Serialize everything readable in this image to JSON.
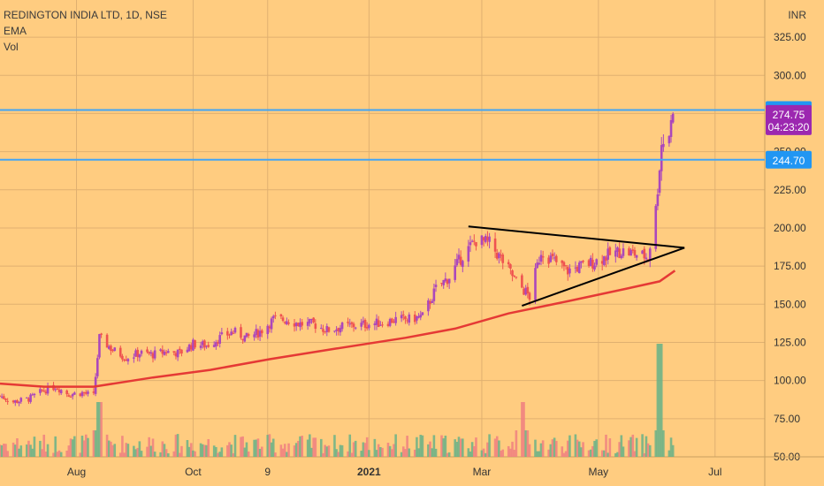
{
  "header": {
    "symbol_line": "REDINGTON INDIA LTD, 1D, NSE",
    "indicator_1": "EMA",
    "indicator_2": "Vol"
  },
  "price_axis": {
    "unit": "INR"
  },
  "price_tags": {
    "last_price": "274.75",
    "countdown": "04:23:20",
    "line_upper": "277.30",
    "line_lower": "244.70"
  },
  "colors": {
    "background": "#ffcc80",
    "candle_up": "#ab47bc",
    "candle_down": "#ef5350",
    "ema": "#e53935",
    "hline": "#42a5f5",
    "tag_blue": "#2196f3",
    "tag_purple": "#9c27b0",
    "volume_up": "#6ab187",
    "volume_down": "#f08080",
    "trendline": "#000000"
  },
  "chart_data": {
    "type": "candlestick",
    "title": "REDINGTON INDIA LTD, 1D, NSE",
    "y_unit": "INR",
    "ylim": [
      50,
      332
    ],
    "x_range": [
      "2020-06-22",
      "2021-07-27"
    ],
    "y_ticks": [
      "50.00",
      "75.00",
      "100.00",
      "125.00",
      "150.00",
      "175.00",
      "200.00",
      "225.00",
      "250.00",
      "275.00",
      "300.00",
      "325.00"
    ],
    "x_ticks": [
      {
        "label": "Aug",
        "date": "2020-08-01"
      },
      {
        "label": "Oct",
        "date": "2020-10-01"
      },
      {
        "label": "9",
        "date": "2020-11-09"
      },
      {
        "label": "2021",
        "date": "2021-01-01"
      },
      {
        "label": "Mar",
        "date": "2021-03-01"
      },
      {
        "label": "May",
        "date": "2021-05-01"
      },
      {
        "label": "Jul",
        "date": "2021-07-01"
      }
    ],
    "price_trend": [
      [
        "2020-06-22",
        90
      ],
      [
        "2020-06-29",
        86
      ],
      [
        "2020-07-07",
        88
      ],
      [
        "2020-07-14",
        93
      ],
      [
        "2020-07-21",
        96
      ],
      [
        "2020-07-28",
        91
      ],
      [
        "2020-08-04",
        92
      ],
      [
        "2020-08-10",
        90
      ],
      [
        "2020-08-13",
        128
      ],
      [
        "2020-08-20",
        120
      ],
      [
        "2020-08-27",
        115
      ],
      [
        "2020-09-03",
        118
      ],
      [
        "2020-09-10",
        117
      ],
      [
        "2020-09-17",
        119
      ],
      [
        "2020-09-24",
        118
      ],
      [
        "2020-10-01",
        124
      ],
      [
        "2020-10-08",
        123
      ],
      [
        "2020-10-15",
        128
      ],
      [
        "2020-10-22",
        132
      ],
      [
        "2020-10-29",
        128
      ],
      [
        "2020-11-05",
        132
      ],
      [
        "2020-11-12",
        140
      ],
      [
        "2020-11-19",
        140
      ],
      [
        "2020-11-26",
        137
      ],
      [
        "2020-12-03",
        137
      ],
      [
        "2020-12-10",
        133
      ],
      [
        "2020-12-17",
        135
      ],
      [
        "2020-12-24",
        136
      ],
      [
        "2021-01-01",
        137
      ],
      [
        "2021-01-08",
        138
      ],
      [
        "2021-01-15",
        140
      ],
      [
        "2021-01-22",
        140
      ],
      [
        "2021-01-29",
        142
      ],
      [
        "2021-02-05",
        160
      ],
      [
        "2021-02-12",
        168
      ],
      [
        "2021-02-19",
        182
      ],
      [
        "2021-02-26",
        192
      ],
      [
        "2021-03-05",
        190
      ],
      [
        "2021-03-12",
        178
      ],
      [
        "2021-03-19",
        165
      ],
      [
        "2021-03-26",
        155
      ],
      [
        "2021-04-01",
        185
      ],
      [
        "2021-04-08",
        178
      ],
      [
        "2021-04-15",
        172
      ],
      [
        "2021-04-22",
        175
      ],
      [
        "2021-04-29",
        178
      ],
      [
        "2021-05-06",
        182
      ],
      [
        "2021-05-13",
        185
      ],
      [
        "2021-05-20",
        183
      ],
      [
        "2021-05-27",
        181
      ],
      [
        "2021-05-31",
        212
      ],
      [
        "2021-06-03",
        255
      ],
      [
        "2021-06-07",
        262
      ],
      [
        "2021-06-09",
        274.75
      ]
    ],
    "ema": [
      [
        "2020-06-22",
        98
      ],
      [
        "2020-07-15",
        96
      ],
      [
        "2020-08-10",
        96
      ],
      [
        "2020-09-10",
        102
      ],
      [
        "2020-10-10",
        107
      ],
      [
        "2020-11-10",
        114
      ],
      [
        "2020-12-15",
        121
      ],
      [
        "2021-01-20",
        128
      ],
      [
        "2021-02-15",
        134
      ],
      [
        "2021-03-15",
        144
      ],
      [
        "2021-04-15",
        152
      ],
      [
        "2021-05-15",
        160
      ],
      [
        "2021-06-02",
        165
      ],
      [
        "2021-06-10",
        172
      ]
    ],
    "volume_spikes": [
      [
        "2020-08-13",
        "high"
      ],
      [
        "2021-03-22",
        "high"
      ],
      [
        "2021-06-02",
        "very high"
      ]
    ],
    "horizontal_levels": [
      277.3,
      244.7
    ],
    "last_price": 274.75,
    "triangle_pattern": {
      "upper_line": [
        [
          "2021-02-22",
          201
        ],
        [
          "2021-06-15",
          187
        ]
      ],
      "lower_line": [
        [
          "2021-03-22",
          149
        ],
        [
          "2021-06-15",
          187
        ]
      ]
    }
  }
}
